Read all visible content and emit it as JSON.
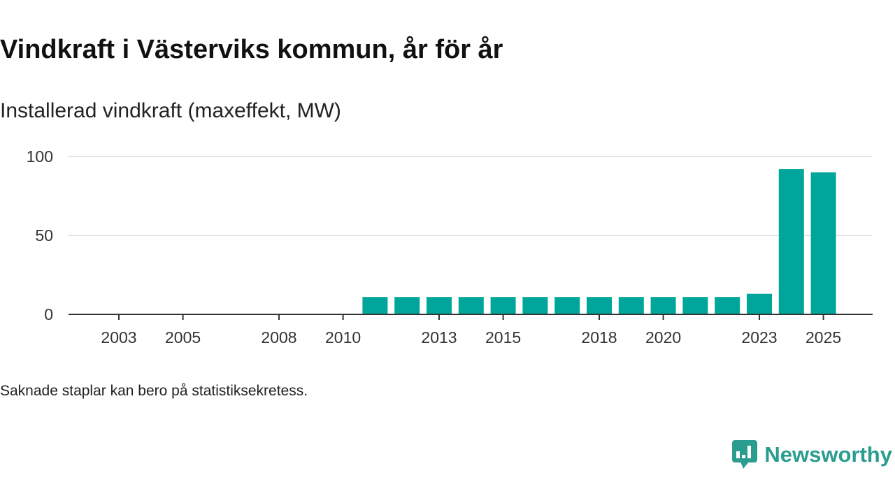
{
  "title": "Vindkraft i Västerviks kommun, år för år",
  "subtitle": "Installerad vindkraft (maxeffekt, MW)",
  "footnote": "Saknade staplar kan bero på statistiksekretess.",
  "brand": {
    "name": "Newsworthy",
    "color": "#2a9d8f"
  },
  "chart_data": {
    "type": "bar",
    "title": "Vindkraft i Västerviks kommun, år för år",
    "subtitle": "Installerad vindkraft (maxeffekt, MW)",
    "xlabel": "",
    "ylabel": "Installerad vindkraft (maxeffekt, MW)",
    "ylim": [
      0,
      100
    ],
    "yticks": [
      0,
      50,
      100
    ],
    "grid": true,
    "bar_color": "#00a699",
    "categories": [
      2003,
      2004,
      2005,
      2006,
      2007,
      2008,
      2009,
      2010,
      2011,
      2012,
      2013,
      2014,
      2015,
      2016,
      2017,
      2018,
      2019,
      2020,
      2021,
      2022,
      2023,
      2024,
      2025
    ],
    "xtick_labels": [
      2003,
      2005,
      2008,
      2010,
      2013,
      2015,
      2018,
      2020,
      2023,
      2025
    ],
    "values": [
      0,
      0,
      0,
      0,
      0,
      0,
      0,
      0,
      11,
      11,
      11,
      11,
      11,
      11,
      11,
      11,
      11,
      11,
      11,
      11,
      13,
      92,
      90
    ]
  }
}
